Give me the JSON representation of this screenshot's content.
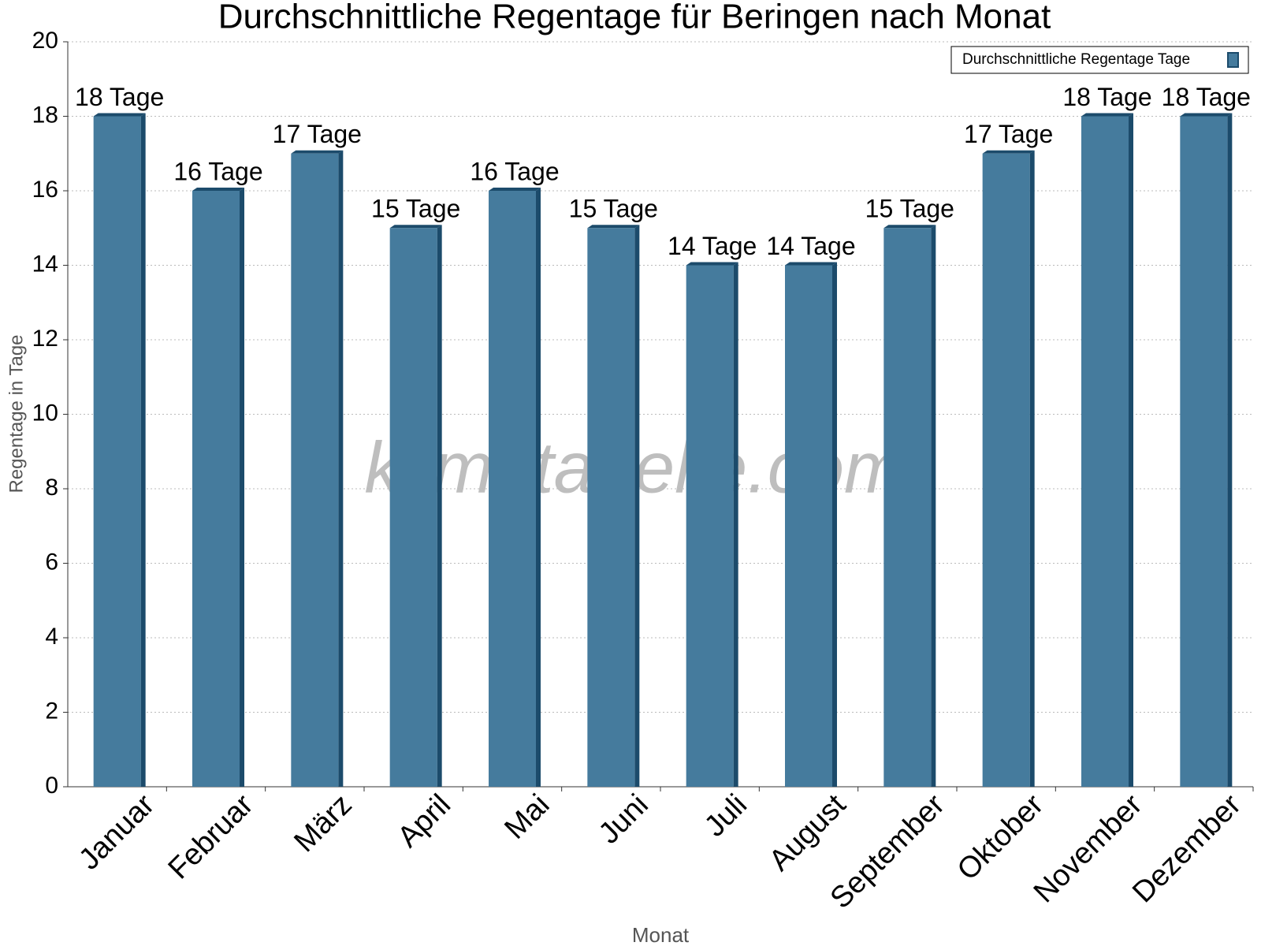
{
  "chart_data": {
    "type": "bar",
    "title": "Durchschnittliche Regentage für Beringen nach Monat",
    "x_label": "Monat",
    "y_label": "Regentage in Tage",
    "watermark": "klimatabelle.com",
    "categories": [
      "Januar",
      "Februar",
      "März",
      "April",
      "Mai",
      "Juni",
      "Juli",
      "August",
      "September",
      "Oktober",
      "November",
      "Dezember"
    ],
    "series": [
      {
        "name": "Durchschnittliche Regentage Tage",
        "color": "#457b9d",
        "values": [
          18,
          16,
          17,
          15,
          16,
          15,
          14,
          14,
          15,
          17,
          18,
          18
        ],
        "value_labels": [
          "18 Tage",
          "16 Tage",
          "17 Tage",
          "15 Tage",
          "16 Tage",
          "15 Tage",
          "14 Tage",
          "14 Tage",
          "15 Tage",
          "17 Tage",
          "18 Tage",
          "18 Tage"
        ]
      }
    ],
    "ylim": [
      0,
      20
    ],
    "yticks": [
      0,
      2,
      4,
      6,
      8,
      10,
      12,
      14,
      16,
      18,
      20
    ],
    "grid": true,
    "legend": "top-right"
  }
}
